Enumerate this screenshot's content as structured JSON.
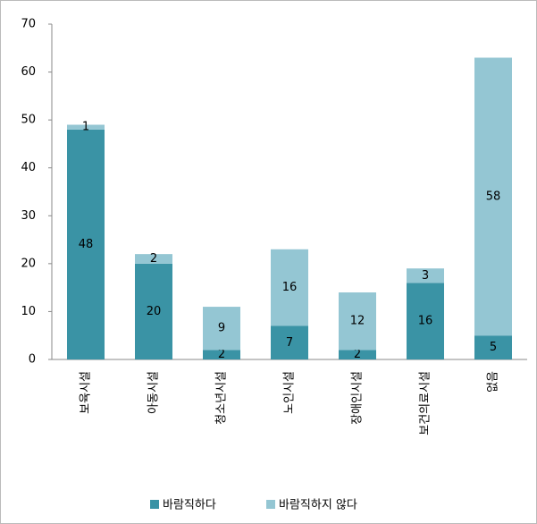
{
  "chart_data": {
    "type": "stacked_bar",
    "categories": [
      "보육시설",
      "아동시설",
      "청소년시설",
      "노인시설",
      "장애인시설",
      "보건의료시설",
      "없음"
    ],
    "series": [
      {
        "name": "바람직하다",
        "color": "#3a93a5",
        "values": [
          48,
          20,
          2,
          7,
          2,
          16,
          5
        ]
      },
      {
        "name": "바람직하지 않다",
        "color": "#94c6d3",
        "values": [
          1,
          2,
          9,
          16,
          12,
          3,
          58
        ]
      }
    ],
    "ylim": [
      0,
      70
    ],
    "yticks": [
      0,
      10,
      20,
      30,
      40,
      50,
      60,
      70
    ],
    "grid": false,
    "legend": "bottom"
  }
}
